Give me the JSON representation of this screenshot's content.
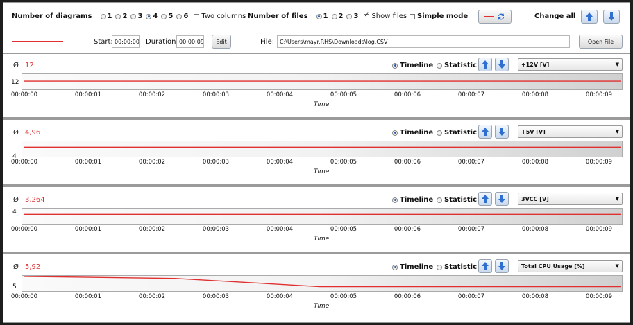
{
  "toolbar": {
    "diagrams_label": "Number of diagrams",
    "diagram_options": [
      "1",
      "2",
      "3",
      "4",
      "5",
      "6"
    ],
    "diagrams_selected": "4",
    "two_columns_label": "Two columns",
    "two_columns_checked": false,
    "files_label": "Number of files",
    "file_options": [
      "1",
      "2",
      "3"
    ],
    "files_selected": "1",
    "show_files_label": "Show files",
    "show_files_checked": true,
    "simple_mode_label": "Simple mode",
    "simple_mode_checked": false,
    "change_all_label": "Change all"
  },
  "file_bar": {
    "start_label": "Start:",
    "start_value": "00:00:00",
    "duration_label": "Duration:",
    "duration_value": "00:00:09",
    "edit_label": "Edit",
    "file_label": "File:",
    "file_path": "C:\\Users\\mayr.RHS\\Downloads\\log.CSV",
    "open_file_label": "Open File",
    "line_color": "#e03030"
  },
  "panels": [
    {
      "avg_symbol": "Ø",
      "average": "12",
      "timeline_label": "Timeline",
      "statistic_label": "Statistic",
      "mode": "Timeline",
      "channel": "+12V [V]",
      "y_tick": "12",
      "x_label": "Time"
    },
    {
      "avg_symbol": "Ø",
      "average": "4,96",
      "timeline_label": "Timeline",
      "statistic_label": "Statistic",
      "mode": "Timeline",
      "channel": "+5V [V]",
      "y_tick": "4",
      "x_label": "Time"
    },
    {
      "avg_symbol": "Ø",
      "average": "3,264",
      "timeline_label": "Timeline",
      "statistic_label": "Statistic",
      "mode": "Timeline",
      "channel": "3VCC [V]",
      "y_tick": "4",
      "x_label": "Time"
    },
    {
      "avg_symbol": "Ø",
      "average": "5,92",
      "timeline_label": "Timeline",
      "statistic_label": "Statistic",
      "mode": "Timeline",
      "channel": "Total CPU Usage [%]",
      "y_tick": "5",
      "x_label": "Time"
    }
  ],
  "x_ticks": [
    "00:00:00",
    "00:00:01",
    "00:00:02",
    "00:00:03",
    "00:00:04",
    "00:00:05",
    "00:00:06",
    "00:00:07",
    "00:00:08",
    "00:00:09"
  ],
  "icons": {
    "up": "arrow-up-icon",
    "down": "arrow-down-icon",
    "swap": "swap-icon",
    "caret": "chevron-down-icon"
  },
  "colors": {
    "series": "#e03030",
    "accent": "#2a5db0"
  }
}
